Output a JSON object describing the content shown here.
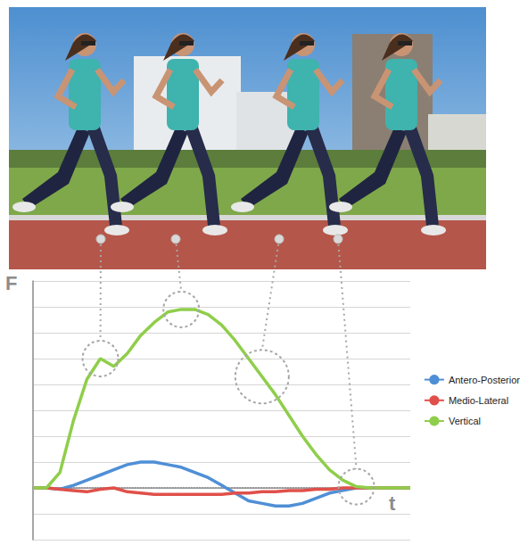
{
  "chart_data": {
    "type": "line",
    "xlabel": "t",
    "ylabel": "F",
    "x": [
      0,
      0.5,
      1,
      1.5,
      2,
      2.5,
      3,
      3.5,
      4,
      4.5,
      5,
      5.5,
      6,
      6.5,
      7,
      7.5,
      8,
      8.5,
      9,
      9.5,
      10,
      10.5,
      11,
      11.5,
      12,
      12.5,
      13,
      13.5,
      14
    ],
    "series": [
      {
        "name": "Antero-Posterior",
        "color": "#4f8fd6",
        "values": [
          0,
          0,
          -0.05,
          0.1,
          0.3,
          0.5,
          0.7,
          0.9,
          1.0,
          1.0,
          0.9,
          0.8,
          0.6,
          0.4,
          0.1,
          -0.2,
          -0.5,
          -0.6,
          -0.7,
          -0.7,
          -0.6,
          -0.4,
          -0.2,
          -0.1,
          0,
          0,
          0,
          0,
          0
        ]
      },
      {
        "name": "Medio-Lateral",
        "color": "#e0504a",
        "values": [
          0,
          0,
          -0.05,
          -0.1,
          -0.15,
          -0.05,
          0,
          -0.15,
          -0.2,
          -0.25,
          -0.25,
          -0.25,
          -0.25,
          -0.25,
          -0.25,
          -0.2,
          -0.2,
          -0.15,
          -0.15,
          -0.1,
          -0.1,
          -0.05,
          -0.05,
          0,
          0,
          0,
          0,
          0,
          0
        ]
      },
      {
        "name": "Vertical",
        "color": "#8fce4a",
        "values": [
          0,
          0,
          0.6,
          2.6,
          4.2,
          5.0,
          4.7,
          5.2,
          5.9,
          6.4,
          6.8,
          6.9,
          6.9,
          6.7,
          6.3,
          5.7,
          5.0,
          4.3,
          3.6,
          2.8,
          2.0,
          1.3,
          0.7,
          0.3,
          0.05,
          0,
          0,
          0,
          0
        ]
      }
    ],
    "xlim": [
      0,
      14
    ],
    "ylim": [
      -2,
      8
    ],
    "yticks": [
      -2,
      -1,
      0,
      1,
      2,
      3,
      4,
      5,
      6,
      7,
      8
    ],
    "grid": true,
    "tick_labels": false,
    "legend": "right"
  }
}
